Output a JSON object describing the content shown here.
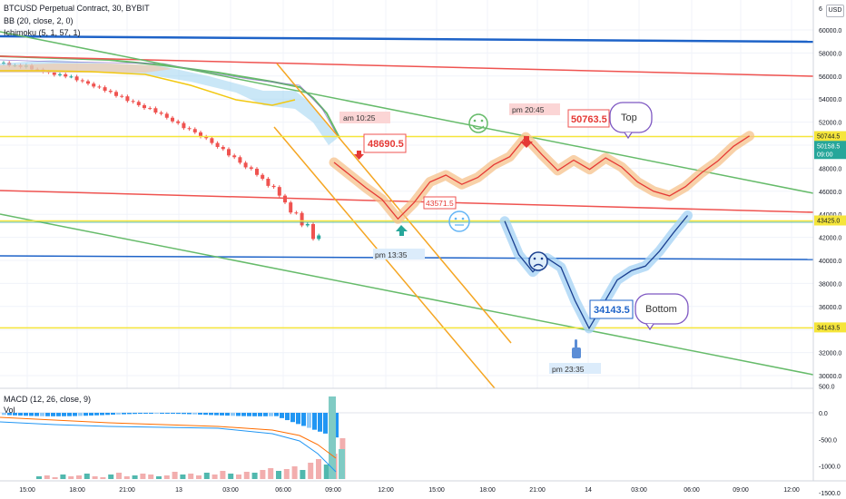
{
  "header": {
    "symbol_line": "BTCUSD Perpetual Contract, 30, BYBIT",
    "bb_line": "BB (20, close, 2, 0)",
    "ichimoku_line": "Ichimoku (5, 1, 57, 1)",
    "macd_line": "MACD (12, 26, close, 9)",
    "vol_line": "Vol",
    "currency_badge": "USD"
  },
  "chart_data": {
    "type": "line",
    "symbol": "BTCUSD Perpetual Contract",
    "timeframe": "30",
    "exchange": "BYBIT",
    "y_axis": {
      "ylim": [
        29000,
        62000
      ],
      "ticks": [
        "60000.0",
        "58000.0",
        "56000.0",
        "54000.0",
        "52000.0",
        "50000.0",
        "48000.0",
        "46000.0",
        "44000.0",
        "42000.0",
        "40000.0",
        "38000.0",
        "36000.0",
        "34000.0",
        "32000.0",
        "30000.0"
      ],
      "top_partial_label": "6"
    },
    "x_axis": {
      "ticks": [
        "15:00",
        "18:00",
        "21:00",
        "13",
        "03:00",
        "06:00",
        "09:00",
        "12:00",
        "15:00",
        "18:00",
        "21:00",
        "14",
        "03:00",
        "06:00",
        "09:00",
        "12:00"
      ]
    },
    "price_labels": [
      {
        "value": "50744.5",
        "color": "#f5e53a"
      },
      {
        "value": "50158.5",
        "sub": "09:00",
        "color": "#26a69a"
      },
      {
        "value": "43425.0",
        "color": "#f5e53a"
      },
      {
        "value": "34143.5",
        "color": "#f5e53a"
      }
    ],
    "horizontal_lines": [
      {
        "price": 50744.5,
        "color": "#f5e53a"
      },
      {
        "price": 43425.0,
        "color": "#f5e53a"
      },
      {
        "price": 34143.5,
        "color": "#f5e53a"
      }
    ],
    "annotations": [
      {
        "text": "am 10:25",
        "kind": "time"
      },
      {
        "text": "48690.5",
        "kind": "price_red"
      },
      {
        "text": "43571.5",
        "kind": "price_red"
      },
      {
        "text": "pm 13:35",
        "kind": "time"
      },
      {
        "text": "pm 20:45",
        "kind": "time"
      },
      {
        "text": "50763.5",
        "kind": "price_red"
      },
      {
        "text": "Top",
        "kind": "bubble"
      },
      {
        "text": "34143.5",
        "kind": "price_blue"
      },
      {
        "text": "Bottom",
        "kind": "bubble"
      },
      {
        "text": "pm 23:35",
        "kind": "time"
      }
    ],
    "projection_red": [
      [
        48500,
        0
      ],
      [
        47400,
        1
      ],
      [
        46300,
        2
      ],
      [
        45300,
        3
      ],
      [
        43600,
        4
      ],
      [
        45000,
        5
      ],
      [
        46800,
        6
      ],
      [
        47400,
        7
      ],
      [
        46600,
        8
      ],
      [
        47200,
        9
      ],
      [
        48300,
        10
      ],
      [
        49000,
        11
      ],
      [
        50700,
        12
      ],
      [
        49200,
        13
      ],
      [
        47800,
        14
      ],
      [
        48700,
        15
      ],
      [
        47900,
        16
      ],
      [
        48900,
        17
      ],
      [
        48100,
        18
      ],
      [
        46800,
        19
      ],
      [
        46000,
        20
      ],
      [
        45600,
        21
      ],
      [
        46400,
        22
      ],
      [
        47600,
        23
      ],
      [
        48600,
        24
      ],
      [
        49900,
        25
      ],
      [
        50800,
        26
      ]
    ],
    "projection_blue": [
      [
        43400,
        0
      ],
      [
        40500,
        1
      ],
      [
        39000,
        2
      ],
      [
        40200,
        3
      ],
      [
        39400,
        4
      ],
      [
        36500,
        5
      ],
      [
        34100,
        6
      ],
      [
        36200,
        7
      ],
      [
        38300,
        8
      ],
      [
        39100,
        9
      ],
      [
        39500,
        10
      ],
      [
        40800,
        11
      ],
      [
        42400,
        12
      ],
      [
        43900,
        13
      ]
    ],
    "macd_axis": {
      "ticks": [
        "500.0",
        "0.0",
        "-500.0",
        "-1000.0",
        "-1500.0"
      ],
      "ylim": [
        -1650,
        650
      ]
    }
  }
}
